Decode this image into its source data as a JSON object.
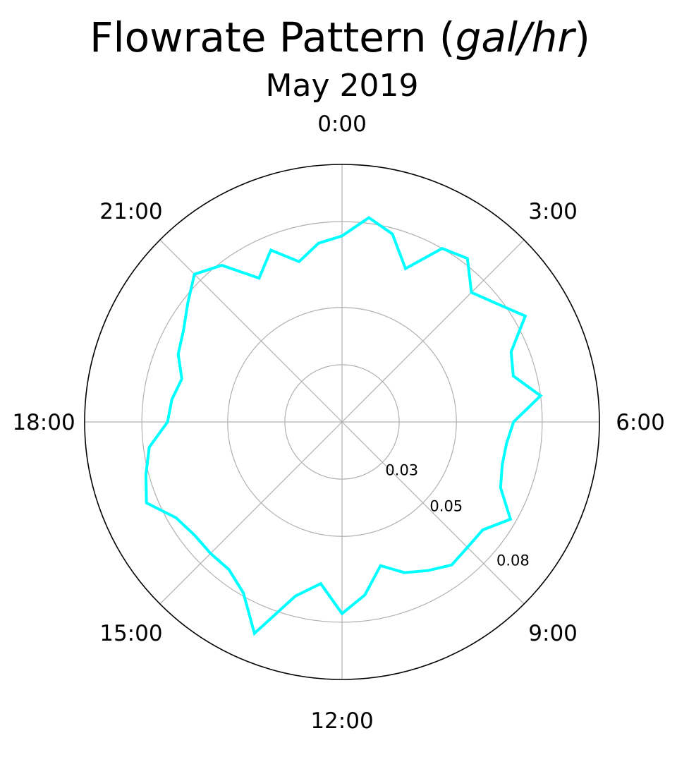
{
  "chart_data": {
    "type": "polar-line",
    "title": "Flowrate Pattern",
    "title_unit": "gal/hr",
    "subtitle": "May 2019",
    "angular_ticks": [
      "0:00",
      "3:00",
      "6:00",
      "9:00",
      "12:00",
      "15:00",
      "18:00",
      "21:00"
    ],
    "radial_ticks": [
      {
        "value": 0.03,
        "label": "0.03"
      },
      {
        "value": 0.05,
        "label": "0.05"
      },
      {
        "value": 0.08,
        "label": "0.08"
      }
    ],
    "rlim": [
      0.01,
      0.1
    ],
    "grid": true,
    "line_color": "#00FFFF",
    "series": [
      {
        "hours": [
          0,
          0.5,
          1,
          1.5,
          2,
          2.5,
          3,
          3.5,
          4,
          4.5,
          5,
          5.5,
          6,
          6.5,
          7,
          7.5,
          8,
          8.5,
          9,
          9.5,
          10,
          10.5,
          11,
          11.5,
          12,
          12.5,
          13,
          13.5,
          14,
          14.5,
          15,
          15.5,
          16,
          16.5,
          17,
          17.5,
          18,
          18.5,
          19,
          19.5,
          20,
          20.5,
          21,
          21.5,
          22,
          22.5,
          23,
          23.5
        ],
        "values": [
          0.075,
          0.082,
          0.078,
          0.068,
          0.08,
          0.082,
          0.074,
          0.078,
          0.084,
          0.074,
          0.072,
          0.08,
          0.07,
          0.068,
          0.068,
          0.07,
          0.078,
          0.072,
          0.072,
          0.073,
          0.07,
          0.067,
          0.062,
          0.071,
          0.077,
          0.067,
          0.073,
          0.09,
          0.079,
          0.075,
          0.075,
          0.075,
          0.077,
          0.084,
          0.081,
          0.078,
          0.071,
          0.07,
          0.068,
          0.072,
          0.074,
          0.078,
          0.083,
          0.079,
          0.068,
          0.075,
          0.068,
          0.073
        ]
      }
    ]
  }
}
